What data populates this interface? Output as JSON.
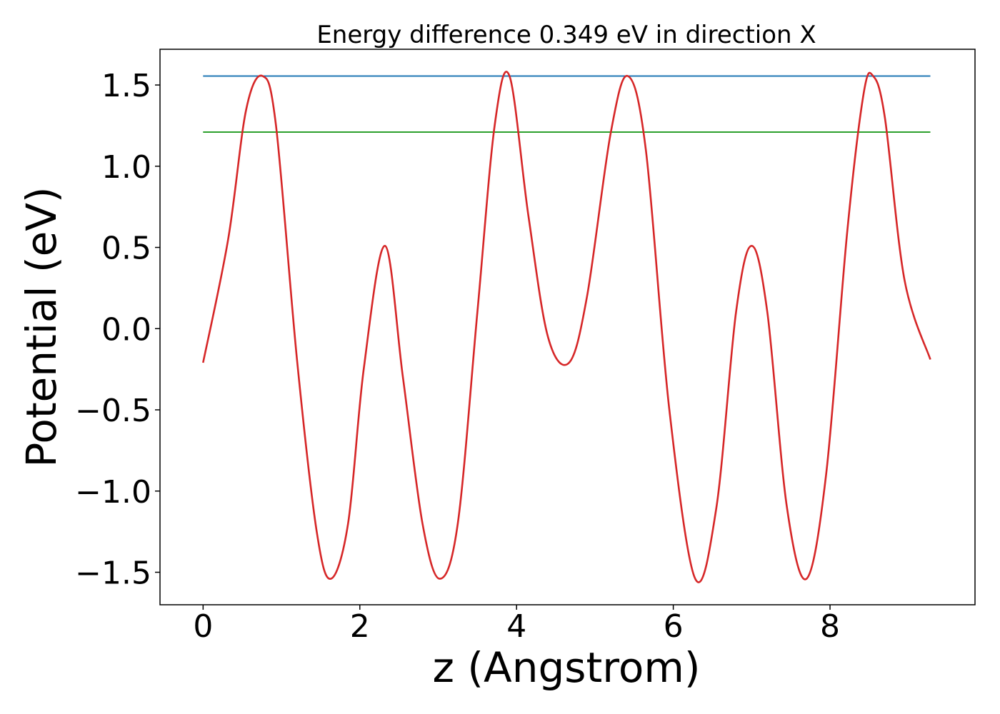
{
  "chart_data": {
    "type": "line",
    "title": "Energy difference 0.349 eV in direction X",
    "xlabel": "z (Angstrom)",
    "ylabel": "Potential (eV)",
    "xlim": [
      -0.55,
      9.85
    ],
    "ylim": [
      -1.7,
      1.72
    ],
    "x_ticks": [
      0,
      2,
      4,
      6,
      8
    ],
    "x_tick_labels": [
      "0",
      "2",
      "4",
      "6",
      "8"
    ],
    "y_ticks": [
      -1.5,
      -1.0,
      -0.5,
      0.0,
      0.5,
      1.0,
      1.5
    ],
    "y_tick_labels": [
      "−1.5",
      "−1.0",
      "−0.5",
      "0.0",
      "0.5",
      "1.0",
      "1.5"
    ],
    "grid": false,
    "series": [
      {
        "color": "#1f77b4",
        "x": [
          0,
          9.28
        ],
        "y": [
          1.555,
          1.555
        ]
      },
      {
        "color": "#2ca02c",
        "x": [
          0,
          9.28
        ],
        "y": [
          1.21,
          1.21
        ]
      },
      {
        "color": "#d62728",
        "x": [
          0.0,
          0.32,
          0.55,
          0.76,
          0.93,
          1.2,
          1.45,
          1.63,
          1.85,
          2.05,
          2.32,
          2.55,
          2.8,
          3.02,
          3.25,
          3.5,
          3.72,
          3.91,
          4.15,
          4.4,
          4.67,
          4.9,
          5.2,
          5.42,
          5.65,
          5.95,
          6.28,
          6.55,
          6.8,
          7.0,
          7.2,
          7.45,
          7.7,
          7.95,
          8.22,
          8.43,
          8.55,
          8.7,
          8.95,
          9.28
        ],
        "y": [
          -0.21,
          0.55,
          1.35,
          1.555,
          1.25,
          -0.2,
          -1.25,
          -1.54,
          -1.2,
          -0.25,
          0.51,
          -0.3,
          -1.2,
          -1.54,
          -1.2,
          0.1,
          1.25,
          1.555,
          0.7,
          -0.05,
          -0.21,
          0.2,
          1.2,
          1.555,
          1.1,
          -0.5,
          -1.54,
          -1.1,
          0.1,
          0.51,
          0.1,
          -1.1,
          -1.54,
          -0.9,
          0.6,
          1.45,
          1.555,
          1.3,
          0.3,
          -0.19
        ]
      }
    ]
  }
}
